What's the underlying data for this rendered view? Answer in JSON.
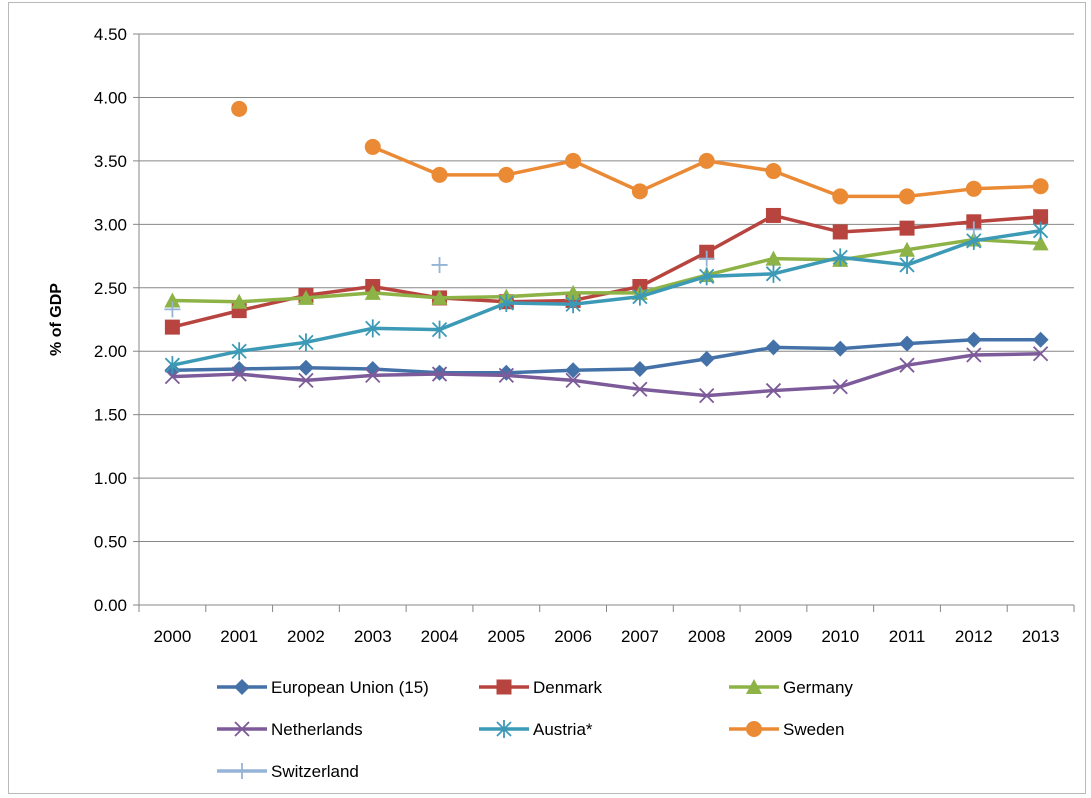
{
  "chart_data": {
    "type": "line",
    "title": "",
    "xlabel": "",
    "ylabel": "% of GDP",
    "ylim": [
      0,
      4.5
    ],
    "y_ticks": [
      "0.00",
      "0.50",
      "1.00",
      "1.50",
      "2.00",
      "2.50",
      "3.00",
      "3.50",
      "4.00",
      "4.50"
    ],
    "categories": [
      "2000",
      "2001",
      "2002",
      "2003",
      "2004",
      "2005",
      "2006",
      "2007",
      "2008",
      "2009",
      "2010",
      "2011",
      "2012",
      "2013"
    ],
    "grid": "horizontal",
    "legend_position": "bottom",
    "series": [
      {
        "name": "European Union (15)",
        "color": "#4472a8",
        "marker": "diamond",
        "values": [
          1.85,
          1.86,
          1.87,
          1.86,
          1.83,
          1.83,
          1.85,
          1.86,
          1.94,
          2.03,
          2.02,
          2.06,
          2.09,
          2.09
        ]
      },
      {
        "name": "Denmark",
        "color": "#b8443f",
        "marker": "square",
        "values": [
          2.19,
          2.32,
          2.44,
          2.51,
          2.42,
          2.39,
          2.4,
          2.51,
          2.78,
          3.07,
          2.94,
          2.97,
          3.02,
          3.06
        ]
      },
      {
        "name": "Germany",
        "color": "#8db246",
        "marker": "triangle",
        "values": [
          2.4,
          2.39,
          2.42,
          2.46,
          2.42,
          2.43,
          2.46,
          2.46,
          2.6,
          2.73,
          2.72,
          2.8,
          2.88,
          2.85
        ]
      },
      {
        "name": "Netherlands",
        "color": "#7d5b9a",
        "marker": "x",
        "values": [
          1.8,
          1.82,
          1.77,
          1.81,
          1.82,
          1.81,
          1.77,
          1.7,
          1.65,
          1.69,
          1.72,
          1.89,
          1.97,
          1.98
        ]
      },
      {
        "name": "Austria*",
        "color": "#3c9ab6",
        "marker": "asterisk",
        "values": [
          1.89,
          2.0,
          2.07,
          2.18,
          2.17,
          2.38,
          2.37,
          2.43,
          2.59,
          2.61,
          2.74,
          2.68,
          2.87,
          2.95
        ]
      },
      {
        "name": "Sweden",
        "color": "#eb8a35",
        "marker": "circle",
        "values": [
          null,
          3.91,
          null,
          3.61,
          3.39,
          3.39,
          3.5,
          3.26,
          3.5,
          3.42,
          3.22,
          3.22,
          3.28,
          3.3
        ]
      },
      {
        "name": "Switzerland",
        "color": "#95b3d7",
        "marker": "plus",
        "values": [
          2.33,
          null,
          null,
          null,
          2.68,
          null,
          null,
          null,
          2.73,
          null,
          null,
          null,
          2.96,
          null
        ]
      }
    ]
  }
}
